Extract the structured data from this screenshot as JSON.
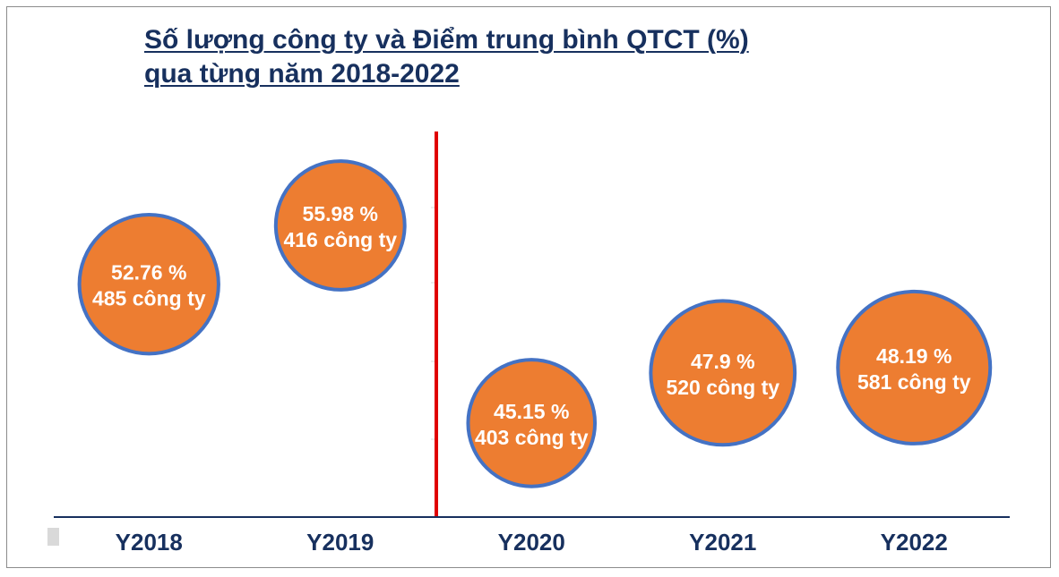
{
  "chart_data": {
    "type": "bubble",
    "title_lines": [
      "Số lượng công ty và Điểm trung bình QTCT (%)",
      "qua từng năm 2018-2022"
    ],
    "categories": [
      "Y2018",
      "Y2019",
      "Y2020",
      "Y2021",
      "Y2022"
    ],
    "series": [
      {
        "values": [
          52.76,
          55.98,
          45.15,
          47.9,
          48.19
        ],
        "sizes": [
          485,
          416,
          403,
          520,
          581
        ],
        "labels_top": [
          "52.76 %",
          "55.98 %",
          "45.15 %",
          "47.9 %",
          "48.19 %"
        ],
        "labels_bottom": [
          "485 công ty",
          "416 công ty",
          "403 công ty",
          "520 công ty",
          "581 công ty"
        ]
      }
    ],
    "divider_after_category": "Y2019",
    "ylim": [
      40,
      65
    ],
    "grid": false,
    "colors": {
      "bubble_fill": "#ed7d31",
      "bubble_stroke": "#4472c4",
      "divider": "#e00000",
      "axis": "#17305e",
      "title": "#17305e",
      "label_text": "#ffffff"
    }
  }
}
